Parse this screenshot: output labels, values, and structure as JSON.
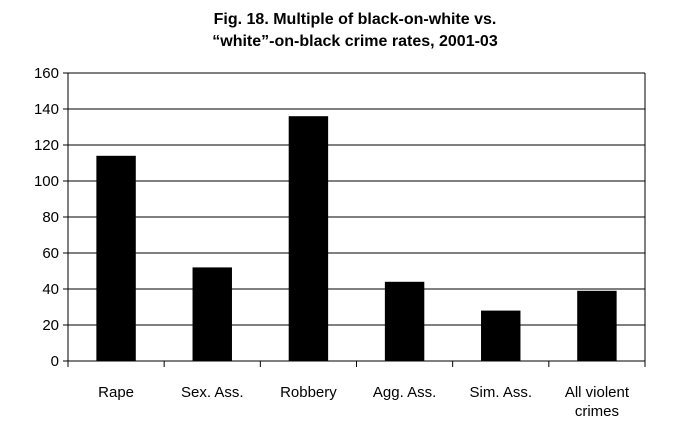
{
  "chart_data": {
    "type": "bar",
    "title_lines": [
      "Fig. 18. Multiple of black-on-white vs.",
      "“white”-on-black crime rates, 2001-03"
    ],
    "categories": [
      [
        "Rape"
      ],
      [
        "Sex. Ass."
      ],
      [
        "Robbery"
      ],
      [
        "Agg. Ass."
      ],
      [
        "Sim. Ass."
      ],
      [
        "All violent",
        "crimes"
      ]
    ],
    "values": [
      114,
      52,
      136,
      44,
      28,
      39
    ],
    "ylim": [
      0,
      160
    ],
    "yticks": [
      0,
      20,
      40,
      60,
      80,
      100,
      120,
      140,
      160
    ],
    "grid": "horizontal",
    "legend": "none",
    "bar_color": "#000000",
    "grid_color": "#000000",
    "background": "#ffffff"
  }
}
